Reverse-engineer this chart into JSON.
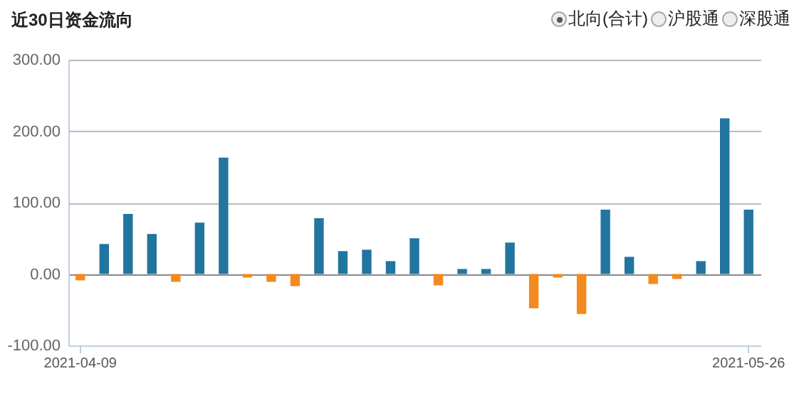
{
  "chart_data": {
    "type": "bar",
    "title": "近30日资金流向",
    "annotations": [
      "北向(合计)",
      "沪股通",
      "深股通"
    ],
    "categories": [
      "2021-04-09",
      null,
      null,
      null,
      null,
      null,
      null,
      null,
      null,
      null,
      null,
      null,
      null,
      null,
      null,
      null,
      null,
      null,
      null,
      null,
      null,
      null,
      null,
      null,
      null,
      null,
      null,
      null,
      "2021-05-26"
    ],
    "values": [
      -9,
      42,
      84,
      56,
      -11,
      72,
      163,
      -5,
      -11,
      -17,
      78,
      32,
      34,
      18,
      50,
      -16,
      7,
      7,
      44,
      -48,
      -5,
      -56,
      90,
      24,
      -14,
      -7,
      18,
      218,
      90
    ],
    "colors": [
      "#f28a1e",
      "#21759f",
      "#21759f",
      "#21759f",
      "#f28a1e",
      "#21759f",
      "#21759f",
      "#f28a1e",
      "#f28a1e",
      "#f28a1e",
      "#21759f",
      "#21759f",
      "#21759f",
      "#21759f",
      "#21759f",
      "#f28a1e",
      "#21759f",
      "#21759f",
      "#21759f",
      "#f28a1e",
      "#f28a1e",
      "#f28a1e",
      "#21759f",
      "#21759f",
      "#f28a1e",
      "#f28a1e",
      "#21759f",
      "#21759f",
      "#21759f"
    ],
    "ylim": [
      -100,
      300
    ],
    "yticks": [
      {
        "value": -100,
        "label": "-100.00"
      },
      {
        "value": 0,
        "label": "0.00"
      },
      {
        "value": 100,
        "label": "100.00"
      },
      {
        "value": 200,
        "label": "200.00"
      },
      {
        "value": 300,
        "label": "300.00"
      }
    ],
    "grid": "y"
  }
}
